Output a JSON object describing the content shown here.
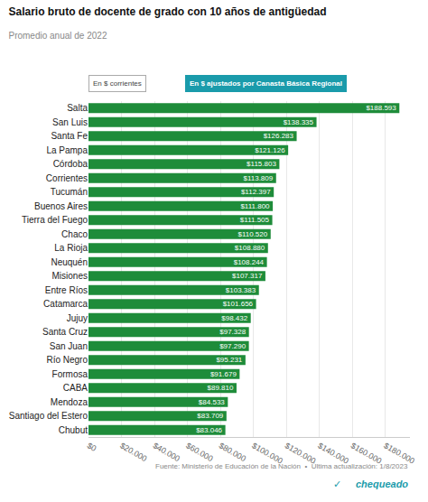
{
  "chart_data": {
    "type": "bar",
    "orientation": "horizontal",
    "title": "Salario bruto de docente de grado con 10 años de antigüedad",
    "subtitle": "Promedio anual de 2022",
    "annotations": [
      "En $ corrientes",
      "En $ ajustados por Canasta Básica Regional",
      "Fuente: Ministerio de Educación de la Nación  •  Última actualización: 1/8/2023",
      "✓",
      "chequeado"
    ],
    "categories": [
      "Salta",
      "San Luis",
      "Santa Fe",
      "La Pampa",
      "Córdoba",
      "Corrientes",
      "Tucumán",
      "Buenos Aires",
      "Tierra del Fuego",
      "Chaco",
      "La Rioja",
      "Neuquén",
      "Misiones",
      "Entre Ríos",
      "Catamarca",
      "Jujuy",
      "Santa Cruz",
      "San Juan",
      "Río Negro",
      "Formosa",
      "CABA",
      "Mendoza",
      "Santiago del Estero",
      "Chubut"
    ],
    "values": [
      188593,
      138335,
      126283,
      121126,
      115803,
      113809,
      112397,
      111800,
      111505,
      110520,
      108880,
      108244,
      107317,
      103383,
      101656,
      98432,
      97328,
      97290,
      95231,
      91679,
      89810,
      84533,
      83709,
      83046
    ],
    "value_labels": [
      "$188.593",
      "$138.335",
      "$126.283",
      "$121.126",
      "$115.803",
      "$113.809",
      "$112.397",
      "$111.800",
      "$111.505",
      "$110.520",
      "$108.880",
      "$108.244",
      "$107.317",
      "$103.383",
      "$101.656",
      "$98.432",
      "$97.328",
      "$97.290",
      "$95.231",
      "$91.679",
      "$89.810",
      "$84.533",
      "$83.709",
      "$83.046"
    ],
    "data_labels": true,
    "color": "#1e8c3a",
    "xlim": [
      0,
      195000
    ],
    "xticks": [
      {
        "value": 0,
        "label": "$0"
      },
      {
        "value": 20000,
        "label": "$20.000"
      },
      {
        "value": 40000,
        "label": "$40.000"
      },
      {
        "value": 60000,
        "label": "$60.000"
      },
      {
        "value": 80000,
        "label": "$80.000"
      },
      {
        "value": 100000,
        "label": "$100.000"
      },
      {
        "value": 120000,
        "label": "$120.000"
      },
      {
        "value": 140000,
        "label": "$140.000"
      },
      {
        "value": 160000,
        "label": "$160.000"
      },
      {
        "value": 180000,
        "label": "$180.000"
      }
    ],
    "grid": true
  }
}
